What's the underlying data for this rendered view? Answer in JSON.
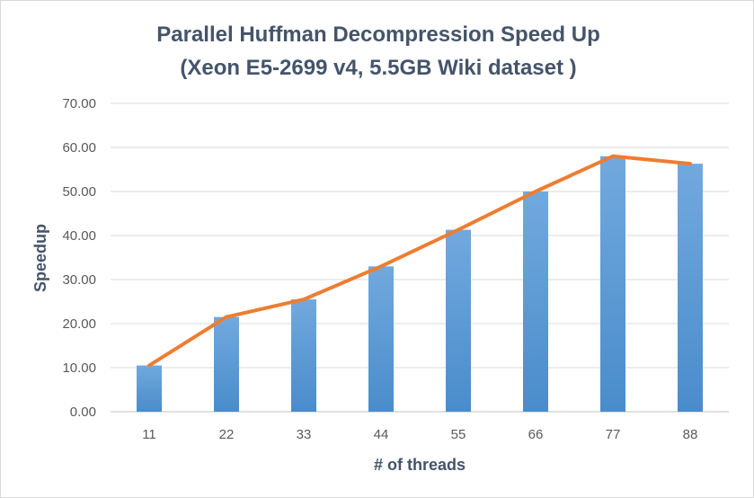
{
  "chart_data": {
    "type": "bar",
    "title": "Parallel  Huffman Decompression Speed Up",
    "subtitle": "(Xeon E5-2699 v4, 5.5GB Wiki dataset )",
    "xlabel": "# of threads",
    "ylabel": "Speedup",
    "categories": [
      "11",
      "22",
      "33",
      "44",
      "55",
      "66",
      "77",
      "88"
    ],
    "series": [
      {
        "type": "bar",
        "values": [
          10.5,
          21.5,
          25.5,
          33.0,
          41.3,
          50.0,
          58.0,
          56.3
        ],
        "color": "#5b9bd5"
      },
      {
        "type": "line",
        "values": [
          10.5,
          21.5,
          25.5,
          33.0,
          41.3,
          50.0,
          58.0,
          56.3
        ],
        "color": "#ed7d31"
      }
    ],
    "ylim": [
      0,
      70
    ],
    "yticks": [
      "0.00",
      "10.00",
      "20.00",
      "30.00",
      "40.00",
      "50.00",
      "60.00",
      "70.00"
    ],
    "grid": true,
    "legend": "none"
  }
}
